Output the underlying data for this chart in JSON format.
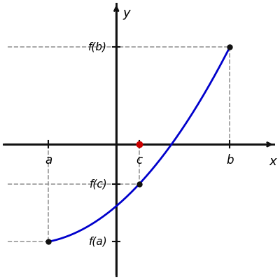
{
  "a_x": -1.5,
  "c_x": 0.5,
  "b_x": 2.5,
  "f_a": -2.2,
  "f_c": -0.9,
  "f_b": 2.2,
  "x_zero": 0.5,
  "xlim": [
    -2.5,
    3.5
  ],
  "ylim": [
    -3.0,
    3.2
  ],
  "curve_color": "#0000cc",
  "dot_color": "#111111",
  "red_dot_color": "#cc0000",
  "dashed_color": "#999999",
  "axis_color": "#111111",
  "label_a": "a",
  "label_b": "b",
  "label_c": "c",
  "label_fa": "f(a)",
  "label_fb": "f(b)",
  "label_fc": "f(c)",
  "label_x": "x",
  "label_y": "y"
}
